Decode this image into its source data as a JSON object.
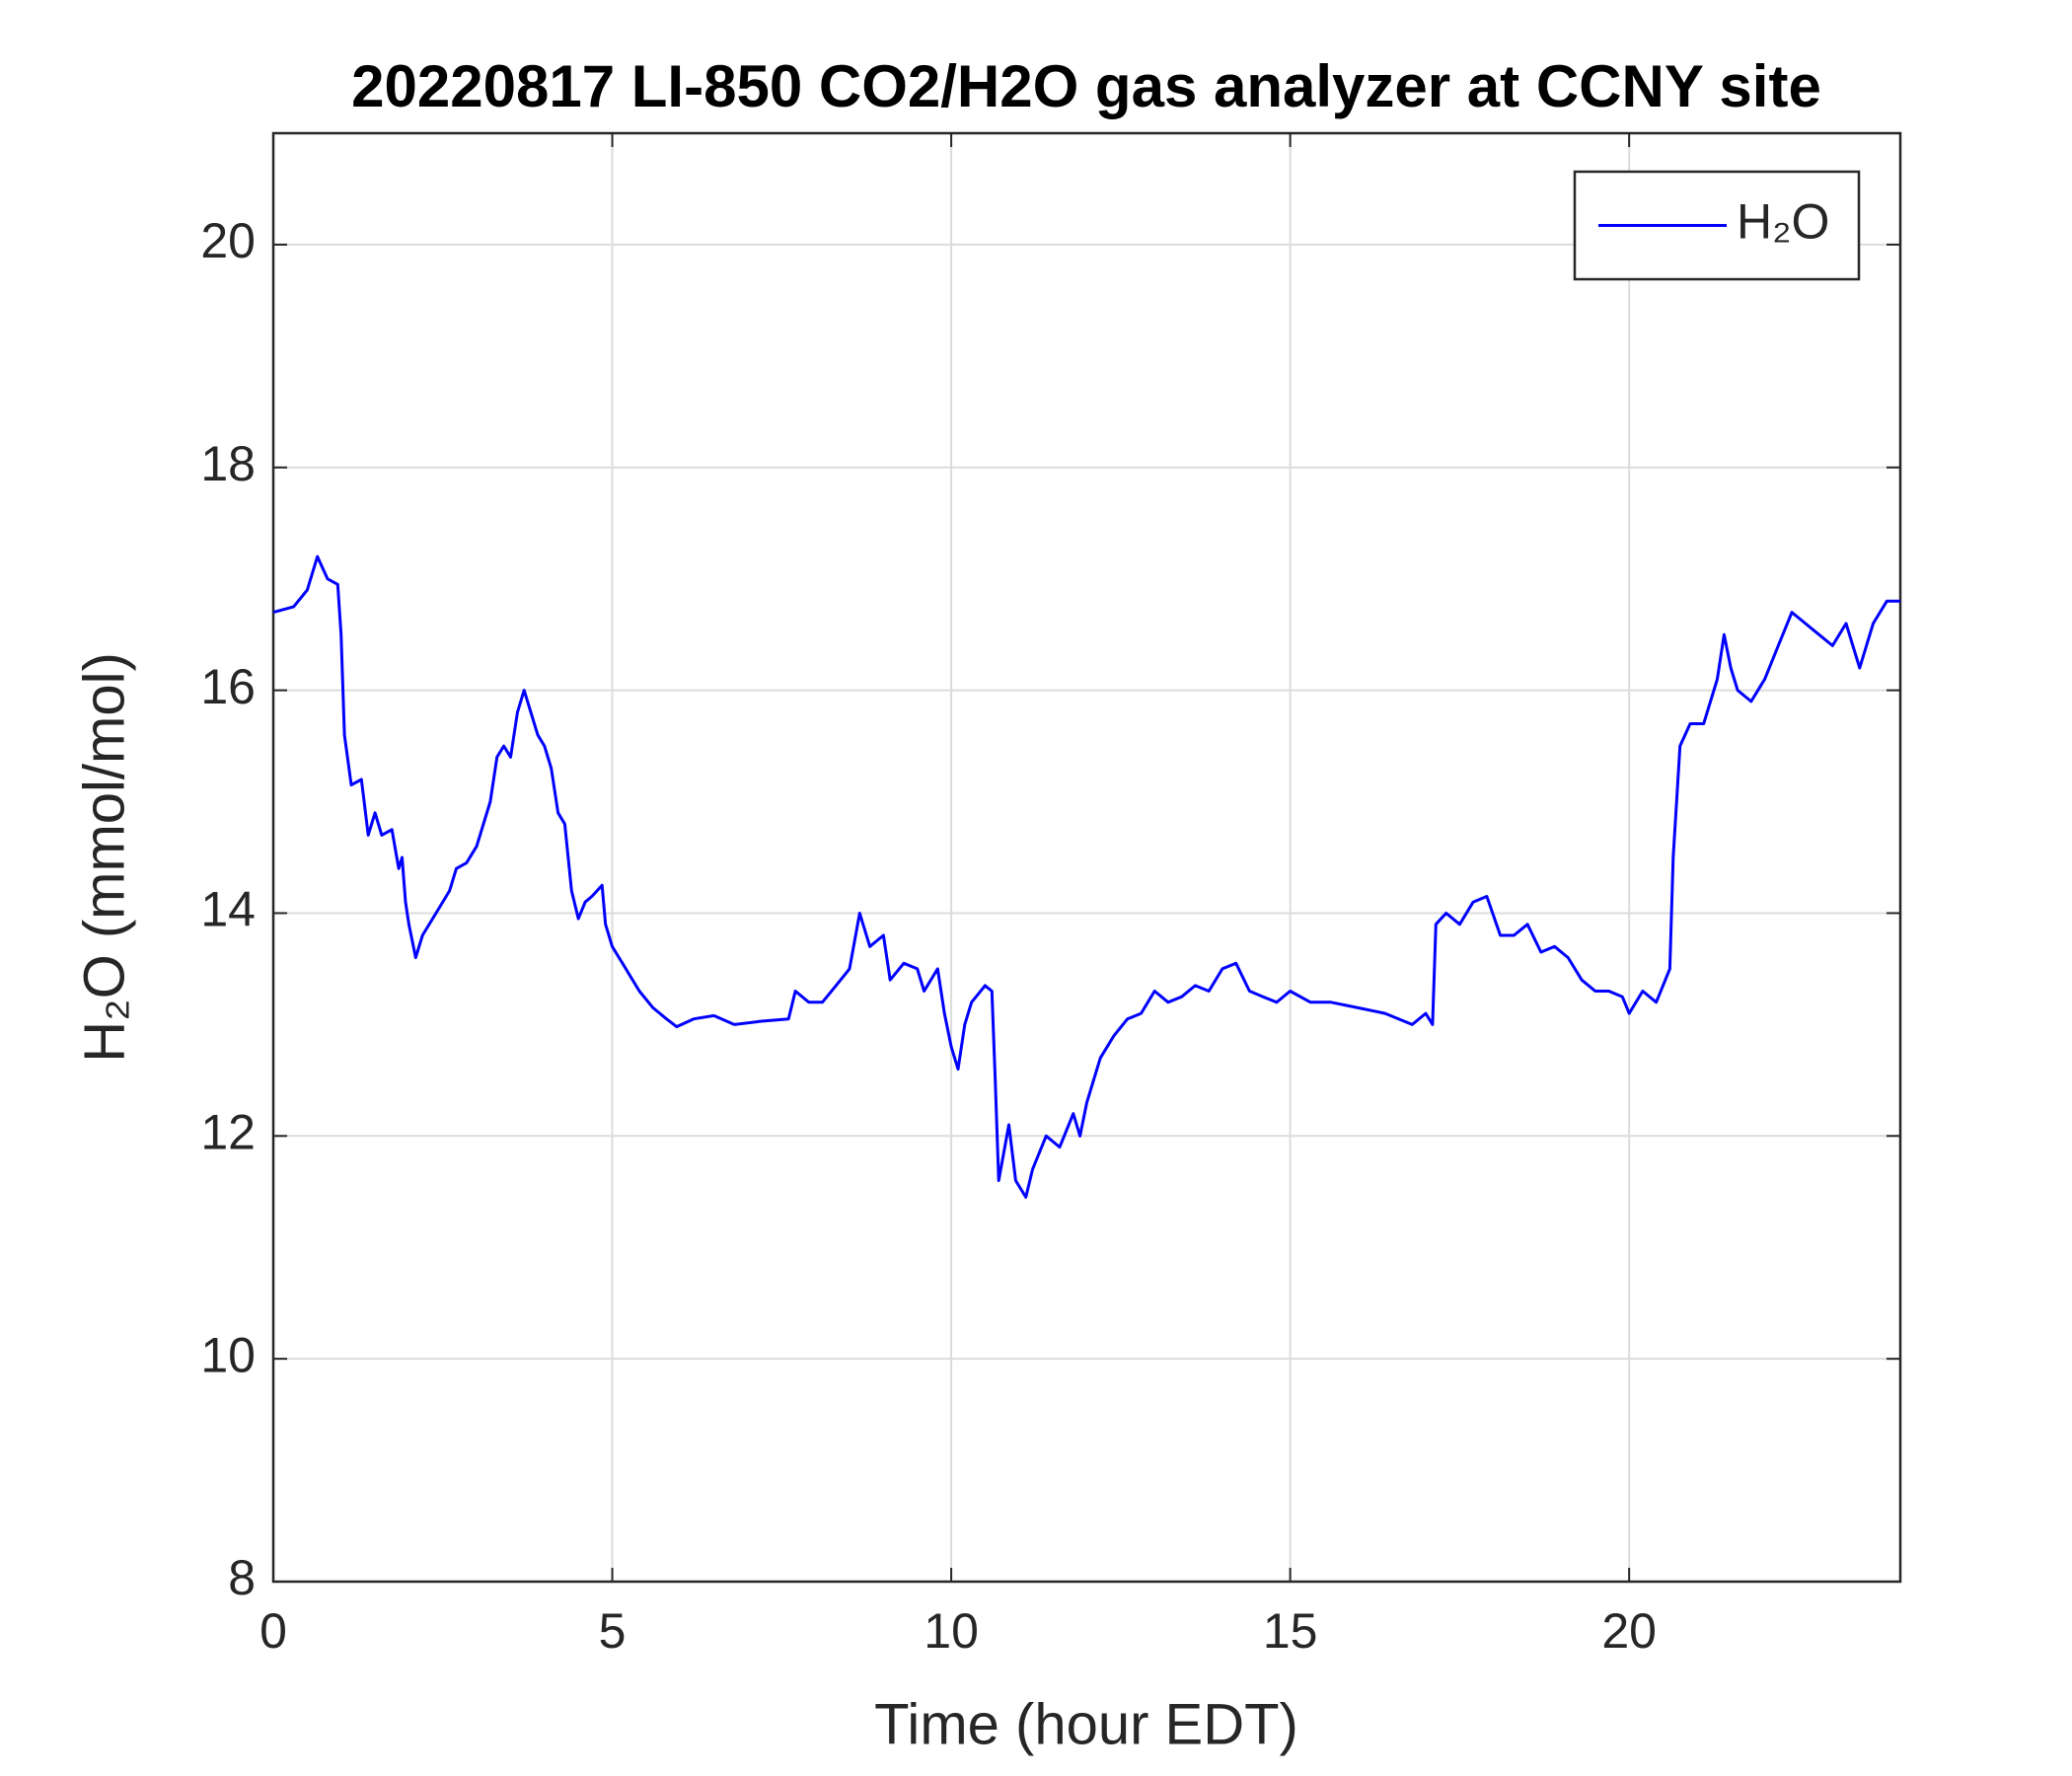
{
  "chart_data": {
    "type": "line",
    "title": "20220817 LI-850 CO2/H2O gas analyzer at CCNY site",
    "xlabel": "Time (hour EDT)",
    "ylabel": "H₂O (mmol/mol)",
    "xlim": [
      0,
      24
    ],
    "ylim": [
      8,
      21
    ],
    "xticks": [
      0,
      5,
      10,
      15,
      20
    ],
    "yticks": [
      8,
      10,
      12,
      14,
      16,
      18,
      20
    ],
    "grid": true,
    "legend": "upper right",
    "x": [
      0,
      0.3,
      0.5,
      0.65,
      0.8,
      0.95,
      1.0,
      1.05,
      1.15,
      1.3,
      1.4,
      1.5,
      1.6,
      1.75,
      1.85,
      1.9,
      1.95,
      2.0,
      2.1,
      2.2,
      2.4,
      2.6,
      2.7,
      2.85,
      3.0,
      3.1,
      3.2,
      3.3,
      3.4,
      3.5,
      3.6,
      3.7,
      3.8,
      3.9,
      4.0,
      4.1,
      4.2,
      4.3,
      4.4,
      4.5,
      4.6,
      4.7,
      4.85,
      4.9,
      5.0,
      5.2,
      5.4,
      5.6,
      5.8,
      5.95,
      6.2,
      6.5,
      6.8,
      7.2,
      7.6,
      7.7,
      7.9,
      8.1,
      8.3,
      8.5,
      8.65,
      8.8,
      9.0,
      9.1,
      9.3,
      9.5,
      9.6,
      9.8,
      9.9,
      10.0,
      10.1,
      10.2,
      10.3,
      10.5,
      10.6,
      10.65,
      10.7,
      10.85,
      10.95,
      11.1,
      11.2,
      11.4,
      11.6,
      11.8,
      11.9,
      12.0,
      12.2,
      12.4,
      12.6,
      12.8,
      13.0,
      13.2,
      13.4,
      13.6,
      13.8,
      14.0,
      14.2,
      14.4,
      14.6,
      14.8,
      15.0,
      15.3,
      15.6,
      16.0,
      16.4,
      16.8,
      17.0,
      17.1,
      17.15,
      17.3,
      17.5,
      17.7,
      17.9,
      18.1,
      18.3,
      18.5,
      18.7,
      18.9,
      19.1,
      19.3,
      19.5,
      19.7,
      19.9,
      20.0,
      20.2,
      20.4,
      20.6,
      20.65,
      20.75,
      20.9,
      21.1,
      21.3,
      21.4,
      21.5,
      21.6,
      21.8,
      22.0,
      22.2,
      22.4,
      22.6,
      22.8,
      23.0,
      23.2,
      23.4,
      23.6,
      23.8,
      24.0
    ],
    "series": [
      {
        "name": "H₂O",
        "color": "#0000ff",
        "values": [
          16.7,
          16.75,
          16.9,
          17.2,
          17.0,
          16.95,
          16.5,
          15.6,
          15.15,
          15.2,
          14.7,
          14.9,
          14.7,
          14.75,
          14.4,
          14.5,
          14.1,
          13.9,
          13.6,
          13.8,
          14.0,
          14.2,
          14.4,
          14.45,
          14.6,
          14.8,
          15.0,
          15.4,
          15.5,
          15.4,
          15.8,
          16.0,
          15.8,
          15.6,
          15.5,
          15.3,
          14.9,
          14.8,
          14.2,
          13.95,
          14.1,
          14.15,
          14.25,
          13.9,
          13.7,
          13.5,
          13.3,
          13.15,
          13.05,
          12.98,
          13.05,
          13.08,
          13.0,
          13.03,
          13.05,
          13.3,
          13.2,
          13.2,
          13.35,
          13.5,
          14.0,
          13.7,
          13.8,
          13.4,
          13.55,
          13.5,
          13.3,
          13.5,
          13.1,
          12.8,
          12.6,
          13.0,
          13.2,
          13.35,
          13.3,
          12.5,
          11.6,
          12.1,
          11.6,
          11.45,
          11.7,
          12.0,
          11.9,
          12.2,
          12.0,
          12.3,
          12.7,
          12.9,
          13.05,
          13.1,
          13.3,
          13.2,
          13.25,
          13.35,
          13.3,
          13.5,
          13.55,
          13.3,
          13.25,
          13.2,
          13.3,
          13.2,
          13.2,
          13.15,
          13.1,
          13.0,
          13.1,
          13.0,
          13.9,
          14.0,
          13.9,
          14.1,
          14.15,
          13.8,
          13.8,
          13.9,
          13.65,
          13.7,
          13.6,
          13.4,
          13.3,
          13.3,
          13.25,
          13.1,
          13.3,
          13.2,
          13.5,
          14.5,
          15.5,
          15.7,
          15.7,
          16.1,
          16.5,
          16.2,
          16.0,
          15.9,
          16.1,
          16.4,
          16.7,
          16.6,
          16.5,
          16.4,
          16.6,
          16.2,
          16.6,
          16.8,
          16.8
        ]
      }
    ]
  }
}
